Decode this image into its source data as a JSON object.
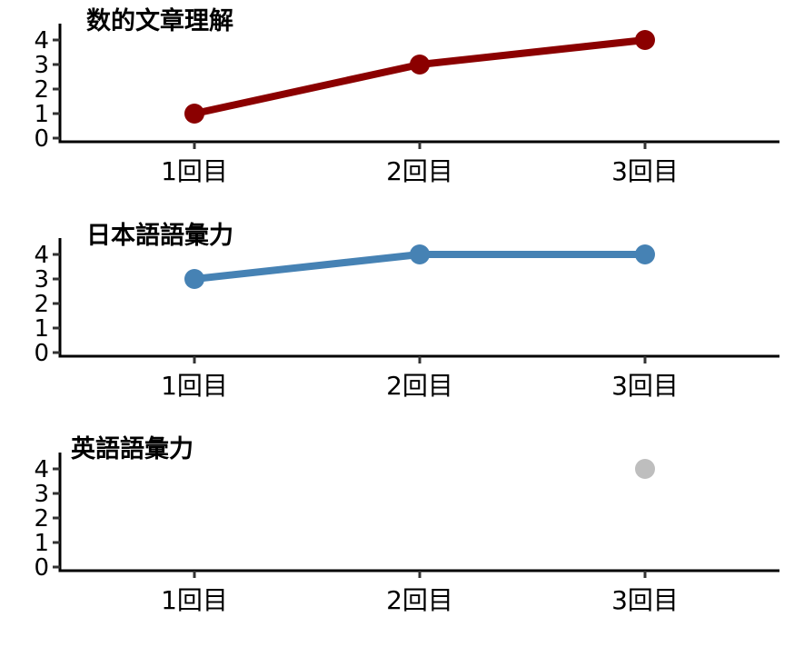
{
  "chart_data": [
    {
      "type": "line",
      "title": "数的文章理解",
      "categories": [
        "1回目",
        "2回目",
        "3回目"
      ],
      "series": [
        {
          "values": [
            1,
            3,
            4
          ],
          "color": "#8B0000"
        }
      ],
      "yticks": [
        0,
        1,
        2,
        3,
        4
      ],
      "ylim": [
        0,
        4.5
      ],
      "grid": false
    },
    {
      "type": "line",
      "title": "日本語語彙力",
      "categories": [
        "1回目",
        "2回目",
        "3回目"
      ],
      "series": [
        {
          "values": [
            3,
            4,
            4
          ],
          "color": "#4682B4"
        }
      ],
      "yticks": [
        0,
        1,
        2,
        3,
        4
      ],
      "ylim": [
        0,
        4.5
      ],
      "grid": false
    },
    {
      "type": "scatter",
      "title": "英語語彙力",
      "categories": [
        "1回目",
        "2回目",
        "3回目"
      ],
      "series": [
        {
          "values": [
            null,
            null,
            4
          ],
          "color": "#BEBEBE"
        }
      ],
      "yticks": [
        0,
        1,
        2,
        3,
        4
      ],
      "ylim": [
        0,
        4.5
      ],
      "grid": false
    }
  ]
}
